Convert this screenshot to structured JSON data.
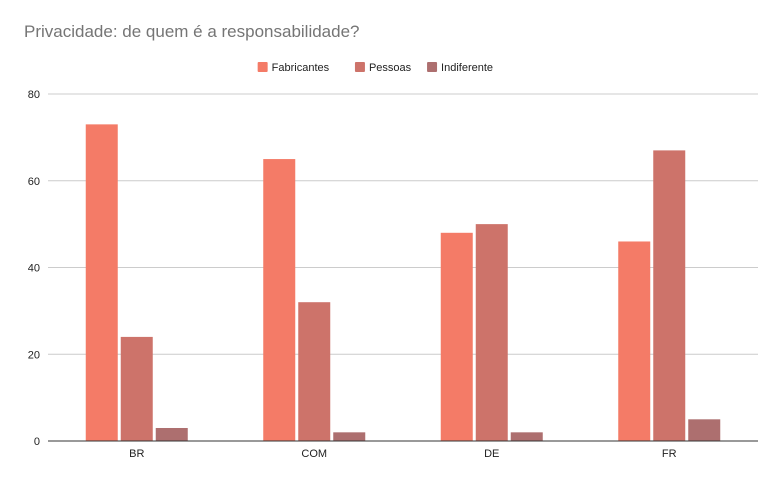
{
  "chart_data": {
    "type": "bar",
    "title": "Privacidade: de quem é a responsabilidade?",
    "categories": [
      "BR",
      "COM",
      "DE",
      "FR"
    ],
    "series": [
      {
        "name": "Fabricantes",
        "color": "#f47b67",
        "values": [
          73,
          65,
          48,
          46
        ]
      },
      {
        "name": "Pessoas",
        "color": "#cd736a",
        "values": [
          24,
          32,
          50,
          67
        ]
      },
      {
        "name": "Indiferente",
        "color": "#ad6f6f",
        "values": [
          3,
          2,
          2,
          5
        ]
      }
    ],
    "ylim": [
      0,
      80
    ],
    "yticks": [
      0,
      20,
      40,
      60,
      80
    ],
    "grid": true,
    "legend_position": "top-center"
  }
}
